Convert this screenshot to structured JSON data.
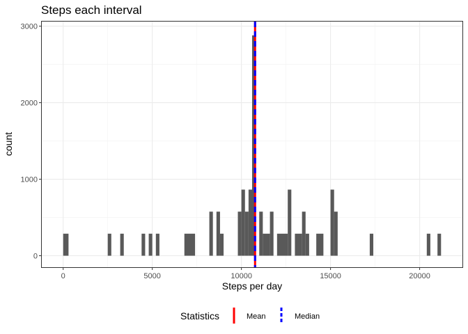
{
  "chart_data": {
    "type": "bar",
    "title": "Steps each interval",
    "xlabel": "Steps per day",
    "ylabel": "count",
    "xlim": [
      -1200,
      22400
    ],
    "ylim": [
      -150,
      3060
    ],
    "x_ticks": [
      0,
      5000,
      10000,
      15000,
      20000
    ],
    "x_tick_labels": [
      "0",
      "5000",
      "10000",
      "15000",
      "20000"
    ],
    "y_ticks": [
      0,
      1000,
      2000,
      3000
    ],
    "y_tick_labels": [
      "0",
      "1000",
      "2000",
      "3000"
    ],
    "grid": true,
    "bar_color": "#595959",
    "bins": [
      {
        "x0": 0,
        "x1": 300,
        "count": 288
      },
      {
        "x0": 2500,
        "x1": 2700,
        "count": 288
      },
      {
        "x0": 3200,
        "x1": 3400,
        "count": 288
      },
      {
        "x0": 4400,
        "x1": 4600,
        "count": 288
      },
      {
        "x0": 4800,
        "x1": 5000,
        "count": 288
      },
      {
        "x0": 5200,
        "x1": 5400,
        "count": 288
      },
      {
        "x0": 6800,
        "x1": 7400,
        "count": 288
      },
      {
        "x0": 8200,
        "x1": 8400,
        "count": 576
      },
      {
        "x0": 8600,
        "x1": 8800,
        "count": 576
      },
      {
        "x0": 8800,
        "x1": 9000,
        "count": 288
      },
      {
        "x0": 9800,
        "x1": 10000,
        "count": 576
      },
      {
        "x0": 10000,
        "x1": 10200,
        "count": 864
      },
      {
        "x0": 10200,
        "x1": 10400,
        "count": 576
      },
      {
        "x0": 10400,
        "x1": 10600,
        "count": 864
      },
      {
        "x0": 10600,
        "x1": 10800,
        "count": 2880
      },
      {
        "x0": 11000,
        "x1": 11200,
        "count": 576
      },
      {
        "x0": 11200,
        "x1": 11600,
        "count": 288
      },
      {
        "x0": 11600,
        "x1": 11800,
        "count": 576
      },
      {
        "x0": 12000,
        "x1": 12600,
        "count": 288
      },
      {
        "x0": 12600,
        "x1": 12800,
        "count": 864
      },
      {
        "x0": 13000,
        "x1": 13400,
        "count": 288
      },
      {
        "x0": 13400,
        "x1": 13600,
        "count": 576
      },
      {
        "x0": 13600,
        "x1": 13800,
        "count": 288
      },
      {
        "x0": 14200,
        "x1": 14600,
        "count": 288
      },
      {
        "x0": 15000,
        "x1": 15200,
        "count": 864
      },
      {
        "x0": 15200,
        "x1": 15400,
        "count": 576
      },
      {
        "x0": 17200,
        "x1": 17400,
        "count": 288
      },
      {
        "x0": 20400,
        "x1": 20600,
        "count": 288
      },
      {
        "x0": 21000,
        "x1": 21200,
        "count": 288
      }
    ],
    "reference_lines": [
      {
        "name": "Mean",
        "x": 10766,
        "color": "#ff0000",
        "dash": false
      },
      {
        "name": "Median",
        "x": 10766,
        "color": "#0000ff",
        "dash": true
      }
    ],
    "legend": {
      "title": "Statistics",
      "placement": "bottom",
      "items": [
        {
          "label": "Mean",
          "color": "#ff0000"
        },
        {
          "label": "Median",
          "color": "#0000ff"
        }
      ]
    }
  }
}
